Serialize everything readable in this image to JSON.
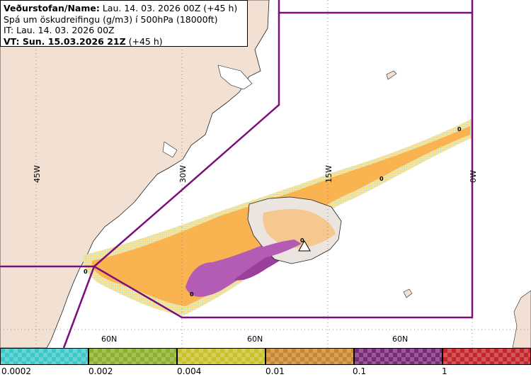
{
  "header": {
    "line1_label": "Veðurstofan/Name:",
    "line1_value": " Lau. 14. 03. 2026 00Z (+45 h)",
    "line2": "Spá um öskudreifingu (g/m3) í 500hPa (18000ft)",
    "line3": "IT: Lau. 14. 03. 2026 00Z",
    "line4_label": "VT: Sun. 15.03.2026 21Z",
    "line4_value": " (+45 h)"
  },
  "map": {
    "lon_labels": [
      "45W",
      "30W",
      "15W",
      "0W"
    ],
    "lat_labels": [
      "60N",
      "60N",
      "60N"
    ],
    "contour_labels": [
      "0",
      "0",
      "0",
      "0",
      "0"
    ],
    "colors": {
      "land": "#f2e0d3",
      "sea": "#ffffff",
      "boundary": "#7a0f7a",
      "low": "#ffe18a",
      "mid": "#fbb04d",
      "high": "#b45cb5",
      "highest": "#9a3f9a",
      "trace": "#9fe3e8"
    }
  },
  "legend": {
    "labels": [
      "0.0002",
      "0.002",
      "0.004",
      "0.01",
      "0.1",
      "1"
    ],
    "colors": [
      "#3cc7c9",
      "#8bb02a",
      "#c8c12a",
      "#c9862e",
      "#7b2a7b",
      "#c5262b"
    ]
  }
}
